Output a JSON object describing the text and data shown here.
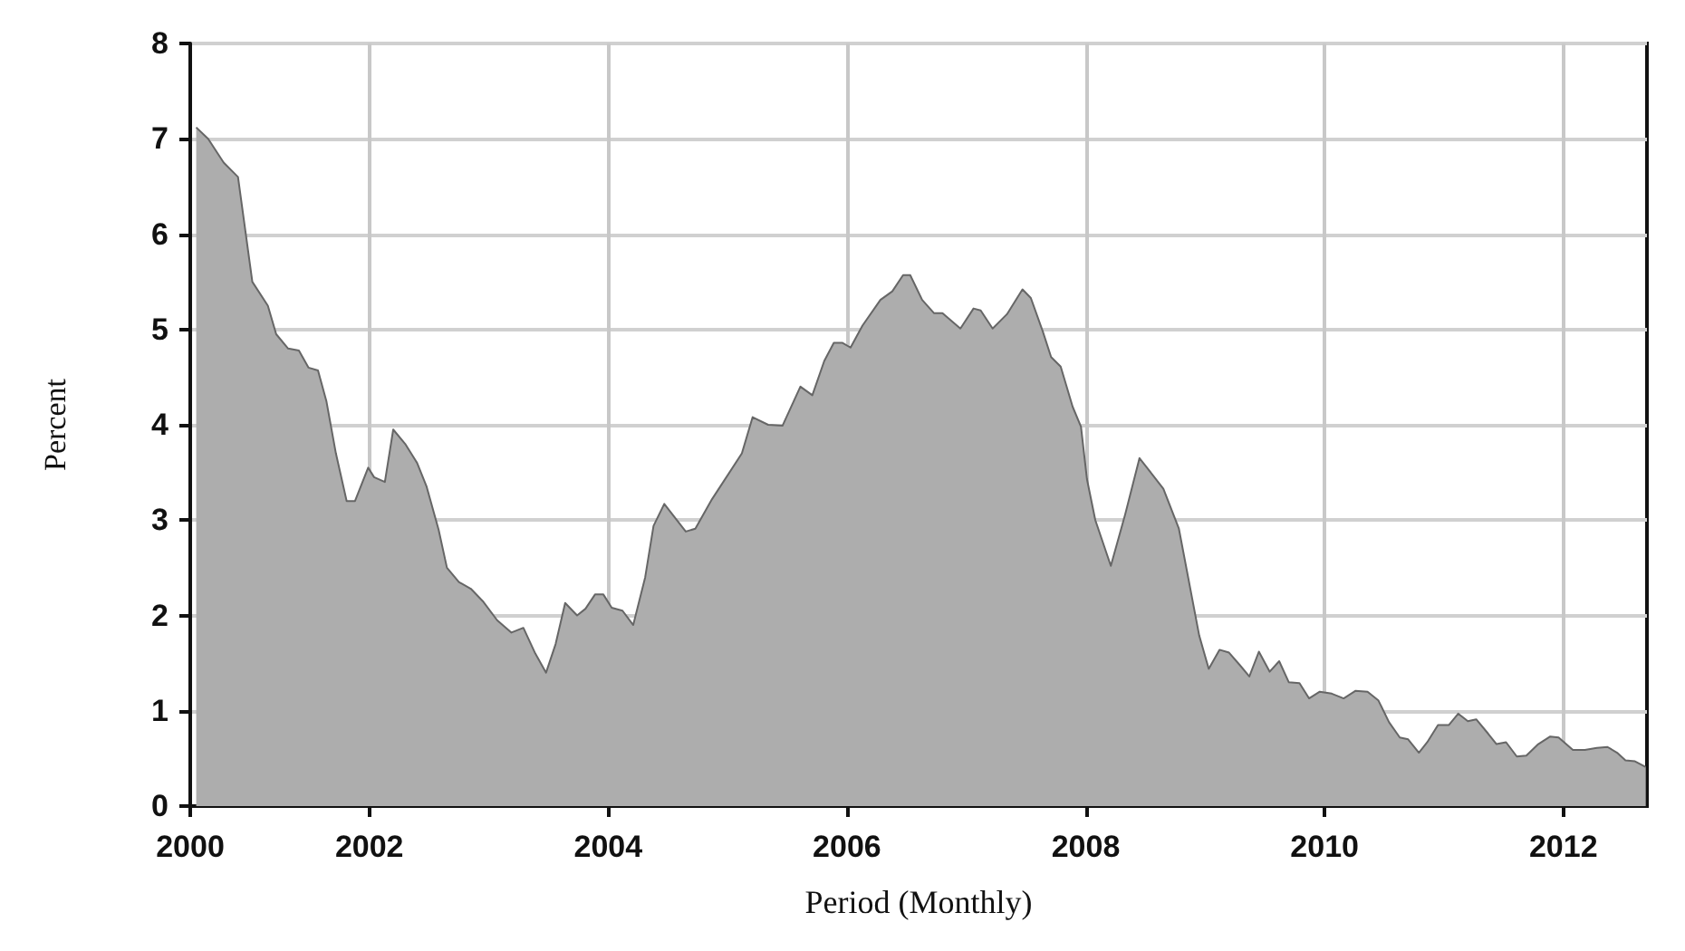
{
  "chart_data": {
    "type": "area",
    "xlabel": "Period (Monthly)",
    "ylabel": "Percent",
    "xlim": [
      2000.5,
      2012.7
    ],
    "ylim": [
      0,
      8
    ],
    "xticks": [
      {
        "value": 2000.5,
        "label": "2000"
      },
      {
        "value": 2002,
        "label": "2002"
      },
      {
        "value": 2004,
        "label": "2004"
      },
      {
        "value": 2006,
        "label": "2006"
      },
      {
        "value": 2008,
        "label": "2008"
      },
      {
        "value": 2010,
        "label": "2010"
      },
      {
        "value": 2012,
        "label": "2012"
      }
    ],
    "yticks": [
      0,
      1,
      2,
      3,
      4,
      5,
      6,
      7,
      8
    ],
    "grid": true,
    "marker": "none",
    "line_style": "solid",
    "series": [
      {
        "color": "#adadad",
        "x": [
          2000.55,
          2000.65,
          2000.78,
          2000.9,
          2001.02,
          2001.15,
          2001.22,
          2001.32,
          2001.41,
          2001.49,
          2001.57,
          2001.64,
          2001.72,
          2001.81,
          2001.88,
          2001.99,
          2002.04,
          2002.13,
          2002.2,
          2002.3,
          2002.4,
          2002.48,
          2002.58,
          2002.65,
          2002.75,
          2002.85,
          2002.95,
          2003.07,
          2003.19,
          2003.29,
          2003.39,
          2003.48,
          2003.56,
          2003.64,
          2003.74,
          2003.81,
          2003.89,
          2003.96,
          2004.03,
          2004.12,
          2004.21,
          2004.31,
          2004.38,
          2004.47,
          2004.65,
          2004.73,
          2004.87,
          2005.12,
          2005.21,
          2005.34,
          2005.46,
          2005.61,
          2005.71,
          2005.81,
          2005.89,
          2005.96,
          2006.03,
          2006.13,
          2006.28,
          2006.38,
          2006.47,
          2006.53,
          2006.63,
          2006.73,
          2006.8,
          2006.95,
          2007.06,
          2007.12,
          2007.22,
          2007.34,
          2007.47,
          2007.54,
          2007.64,
          2007.71,
          2007.79,
          2007.89,
          2007.96,
          2008.01,
          2008.08,
          2008.21,
          2008.33,
          2008.45,
          2008.65,
          2008.78,
          2008.95,
          2009.03,
          2009.12,
          2009.2,
          2009.29,
          2009.37,
          2009.45,
          2009.54,
          2009.62,
          2009.7,
          2009.79,
          2009.87,
          2009.96,
          2010.06,
          2010.16,
          2010.26,
          2010.36,
          2010.45,
          2010.54,
          2010.63,
          2010.7,
          2010.79,
          2010.86,
          2010.95,
          2011.04,
          2011.12,
          2011.2,
          2011.27,
          2011.37,
          2011.44,
          2011.52,
          2011.61,
          2011.69,
          2011.79,
          2011.89,
          2011.96,
          2012.08,
          2012.18,
          2012.28,
          2012.37,
          2012.45,
          2012.52,
          2012.6,
          2012.69
        ],
        "values": [
          7.12,
          7.0,
          6.75,
          6.6,
          5.5,
          5.25,
          4.95,
          4.8,
          4.78,
          4.6,
          4.57,
          4.25,
          3.7,
          3.2,
          3.2,
          3.55,
          3.45,
          3.4,
          3.95,
          3.8,
          3.6,
          3.35,
          2.9,
          2.5,
          2.35,
          2.28,
          2.15,
          1.95,
          1.82,
          1.87,
          1.6,
          1.4,
          1.7,
          2.13,
          2.0,
          2.07,
          2.22,
          2.22,
          2.08,
          2.05,
          1.9,
          2.4,
          2.94,
          3.17,
          2.88,
          2.91,
          3.22,
          3.7,
          4.08,
          4.0,
          3.99,
          4.4,
          4.31,
          4.67,
          4.86,
          4.86,
          4.81,
          5.04,
          5.31,
          5.4,
          5.57,
          5.57,
          5.31,
          5.17,
          5.17,
          5.01,
          5.22,
          5.2,
          5.01,
          5.16,
          5.42,
          5.33,
          4.98,
          4.71,
          4.61,
          4.19,
          3.98,
          3.43,
          3.0,
          2.52,
          3.06,
          3.65,
          3.33,
          2.91,
          1.79,
          1.44,
          1.64,
          1.61,
          1.48,
          1.36,
          1.62,
          1.41,
          1.52,
          1.3,
          1.29,
          1.13,
          1.2,
          1.18,
          1.13,
          1.21,
          1.2,
          1.11,
          0.88,
          0.72,
          0.7,
          0.56,
          0.67,
          0.85,
          0.85,
          0.97,
          0.89,
          0.91,
          0.76,
          0.65,
          0.67,
          0.52,
          0.53,
          0.65,
          0.73,
          0.72,
          0.59,
          0.59,
          0.61,
          0.62,
          0.56,
          0.48,
          0.47,
          0.41
        ]
      }
    ]
  }
}
